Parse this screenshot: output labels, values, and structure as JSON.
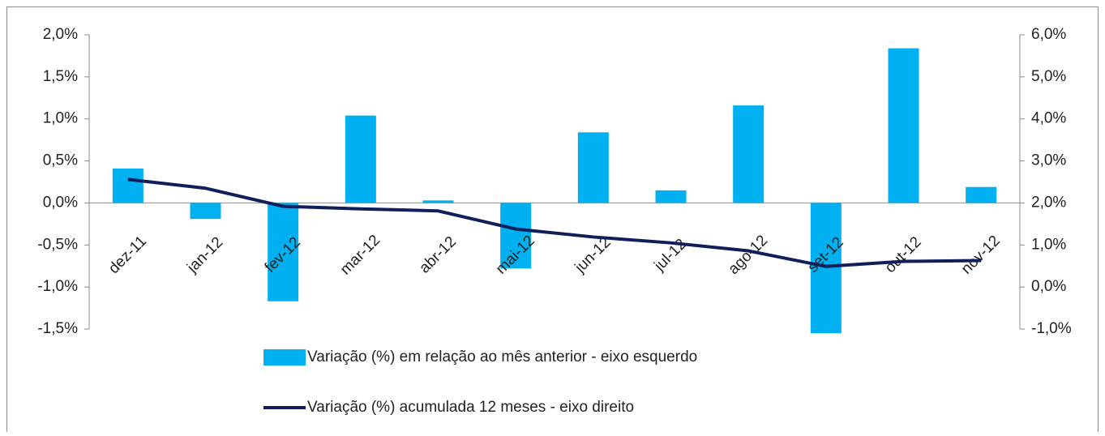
{
  "chart_data": {
    "type": "bar-line",
    "categories": [
      "dez-11",
      "jan-12",
      "fev-12",
      "mar-12",
      "abr-12",
      "mai-12",
      "jun-12",
      "jul-12",
      "ago-12",
      "set-12",
      "out-12",
      "nov-12"
    ],
    "series": [
      {
        "name": "Variação (%) em relação ao mês anterior - eixo esquerdo",
        "type": "bar",
        "color": "#00b0f0",
        "axis": "y",
        "values": [
          0.41,
          -0.19,
          -1.17,
          1.04,
          0.03,
          -0.78,
          0.84,
          0.15,
          1.16,
          -1.55,
          1.84,
          0.19
        ]
      },
      {
        "name": "Variação (%) acumulada 12 meses - eixo direito",
        "type": "line",
        "color": "#0e1f5b",
        "axis": "y2",
        "values": [
          2.56,
          2.35,
          1.92,
          1.86,
          1.81,
          1.38,
          1.19,
          1.05,
          0.86,
          0.49,
          0.61,
          0.63
        ]
      }
    ],
    "ylim": [
      -1.5,
      2.0
    ],
    "yticks": [
      {
        "value": -1.5,
        "label": "-1,5%"
      },
      {
        "value": -1.0,
        "label": "-1,0%"
      },
      {
        "value": -0.5,
        "label": "-0,5%"
      },
      {
        "value": 0,
        "label": "0,0%"
      },
      {
        "value": 0.5,
        "label": "0,5%"
      },
      {
        "value": 1.0,
        "label": "1,0%"
      },
      {
        "value": 1.5,
        "label": "1,5%"
      },
      {
        "value": 2.0,
        "label": "2,0%"
      }
    ],
    "y2lim": [
      -1.0,
      6.0
    ],
    "y2ticks": [
      {
        "value": -1.0,
        "label": "-1,0%"
      },
      {
        "value": 0,
        "label": "0,0%"
      },
      {
        "value": 1.0,
        "label": "1,0%"
      },
      {
        "value": 2.0,
        "label": "2,0%"
      },
      {
        "value": 3.0,
        "label": "3,0%"
      },
      {
        "value": 4.0,
        "label": "4,0%"
      },
      {
        "value": 5.0,
        "label": "5,0%"
      },
      {
        "value": 6.0,
        "label": "6,0%"
      }
    ],
    "grid": false
  }
}
